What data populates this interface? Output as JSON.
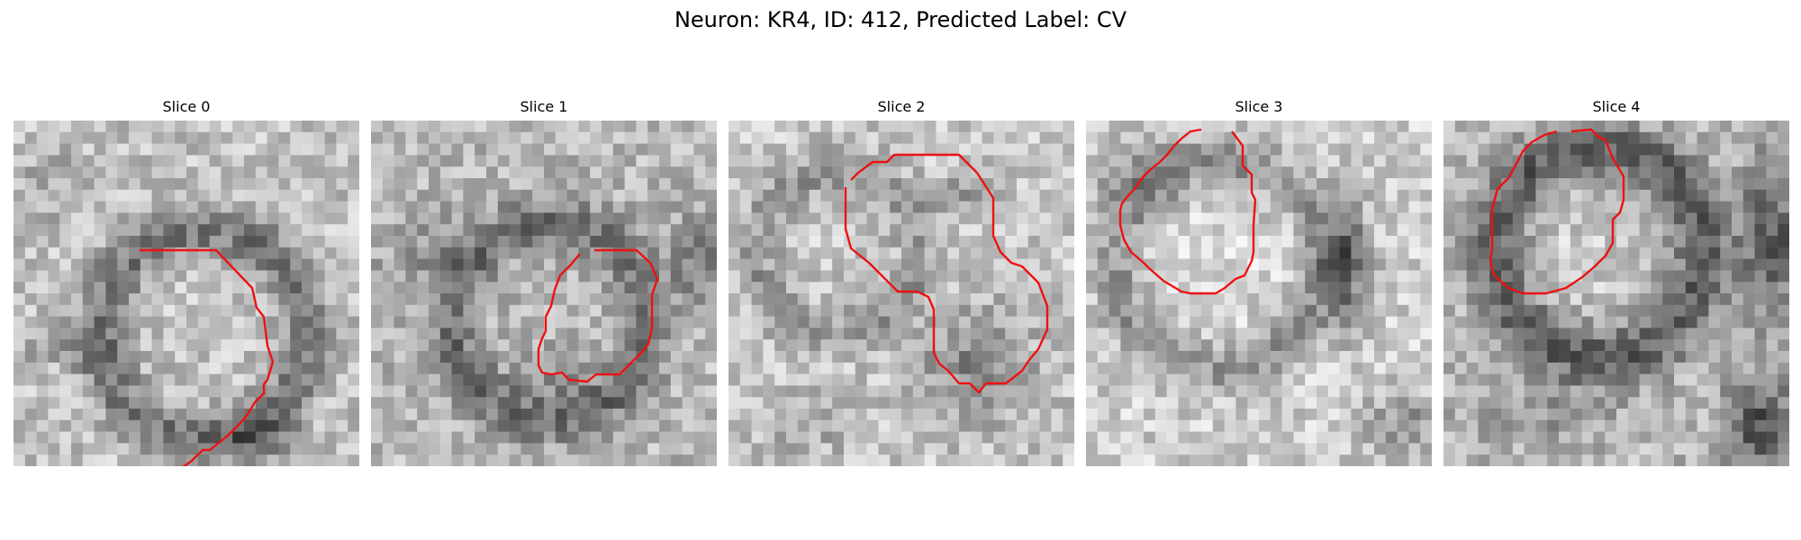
{
  "figure": {
    "title": "Neuron: KR4, ID: 412, Predicted Label: CV"
  },
  "panels": [
    {
      "title": "Slice 0"
    },
    {
      "title": "Slice 1"
    },
    {
      "title": "Slice 2"
    },
    {
      "title": "Slice 3"
    },
    {
      "title": "Slice 4"
    }
  ],
  "colors": {
    "contour": "#ee1111",
    "background": "#ffffff"
  }
}
